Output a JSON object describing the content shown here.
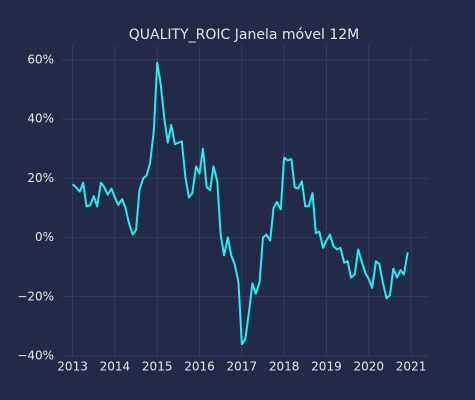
{
  "chart_data": {
    "type": "line",
    "title": "QUALITY_ROIC Janela móvel 12M",
    "xlim": [
      2012.75,
      2021.4
    ],
    "xticks": [
      2013,
      2014,
      2015,
      2016,
      2017,
      2018,
      2019,
      2020,
      2021
    ],
    "ylim": [
      -40,
      65
    ],
    "yticks": [
      {
        "value": -40,
        "label": "−40%"
      },
      {
        "value": -20,
        "label": "−20%"
      },
      {
        "value": 0,
        "label": "0%"
      },
      {
        "value": 20,
        "label": "20%"
      },
      {
        "value": 40,
        "label": "40%"
      },
      {
        "value": 60,
        "label": "60%"
      }
    ],
    "grid": true,
    "x": [
      2013,
      2013.08,
      2013.17,
      2013.25,
      2013.33,
      2013.42,
      2013.5,
      2013.58,
      2013.67,
      2013.75,
      2013.83,
      2013.92,
      2014,
      2014.08,
      2014.17,
      2014.25,
      2014.33,
      2014.42,
      2014.5,
      2014.58,
      2014.67,
      2014.75,
      2014.83,
      2014.92,
      2015,
      2015.08,
      2015.17,
      2015.25,
      2015.33,
      2015.42,
      2015.5,
      2015.58,
      2015.67,
      2015.75,
      2015.83,
      2015.92,
      2016,
      2016.08,
      2016.17,
      2016.25,
      2016.33,
      2016.42,
      2016.5,
      2016.58,
      2016.67,
      2016.75,
      2016.83,
      2016.92,
      2017,
      2017.08,
      2017.17,
      2017.25,
      2017.33,
      2017.42,
      2017.5,
      2017.58,
      2017.67,
      2017.75,
      2017.83,
      2017.92,
      2018,
      2018.08,
      2018.17,
      2018.25,
      2018.33,
      2018.42,
      2018.5,
      2018.58,
      2018.67,
      2018.75,
      2018.83,
      2018.92,
      2019,
      2019.08,
      2019.17,
      2019.25,
      2019.33,
      2019.42,
      2019.5,
      2019.58,
      2019.67,
      2019.75,
      2019.83,
      2019.92,
      2020,
      2020.08,
      2020.17,
      2020.25,
      2020.33,
      2020.42,
      2020.5,
      2020.58,
      2020.67,
      2020.75,
      2020.83,
      2020.92
    ],
    "series": [
      {
        "color": "#22eef5",
        "values": [
          18,
          17,
          15.5,
          18.5,
          10.5,
          11,
          14,
          10.5,
          18.5,
          17,
          14.5,
          16.5,
          13.5,
          11,
          13,
          10,
          5,
          1,
          2.5,
          16,
          20,
          21,
          25,
          36,
          59,
          52,
          40,
          32,
          38,
          31.5,
          32,
          32.5,
          20,
          13.5,
          15,
          24,
          21.5,
          30,
          17,
          16,
          24,
          19,
          1,
          -6,
          0,
          -6,
          -9,
          -15,
          -36,
          -34.5,
          -25,
          -15.5,
          -19,
          -15,
          0,
          1,
          -1,
          10,
          12,
          9.5,
          27,
          26,
          26.5,
          17,
          16.5,
          19,
          10.5,
          10.5,
          15,
          1.5,
          2,
          -3.5,
          -1,
          1,
          -3,
          -4,
          -3.5,
          -8.5,
          -8,
          -13.5,
          -12.5,
          -4,
          -8,
          -12,
          -14,
          -17,
          -8,
          -9,
          -15,
          -20.5,
          -19.5,
          -10.5,
          -13.5,
          -11,
          -12.5,
          -5
        ]
      }
    ]
  }
}
